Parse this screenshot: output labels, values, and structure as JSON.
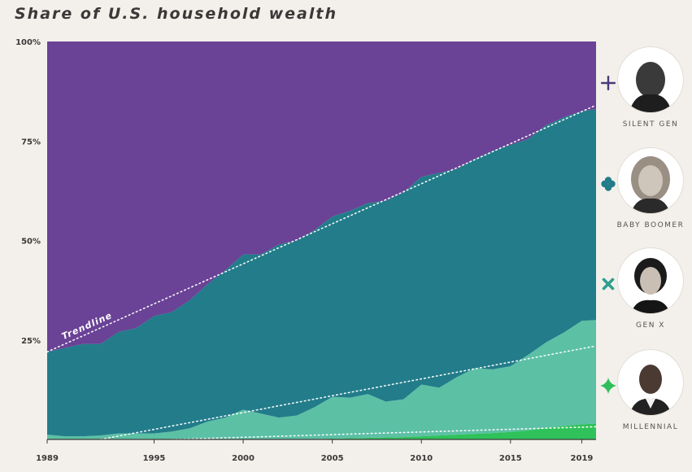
{
  "title": "Share of U.S. household wealth",
  "chart_data": {
    "type": "area",
    "stacked": true,
    "xlim": [
      1989,
      2019.8
    ],
    "ylim": [
      0,
      100
    ],
    "y_ticks": [
      "100%",
      "75%",
      "50%",
      "25%"
    ],
    "y_tick_values": [
      100,
      75,
      50,
      25
    ],
    "x_ticks": [
      "1989",
      "1995",
      "2000",
      "2005",
      "2010",
      "2015",
      "2019"
    ],
    "x_tick_values": [
      1989,
      1995,
      2000,
      2005,
      2010,
      2015,
      2019
    ],
    "x": [
      1989,
      1990,
      1991,
      1992,
      1993,
      1994,
      1995,
      1996,
      1997,
      1998,
      1999,
      2000,
      2001,
      2002,
      2003,
      2004,
      2005,
      2006,
      2007,
      2008,
      2009,
      2010,
      2011,
      2012,
      2013,
      2014,
      2015,
      2016,
      2017,
      2018,
      2019,
      2019.8
    ],
    "series": [
      {
        "name": "Millennial",
        "color": "#2fc25b",
        "values": [
          0,
          0,
          0,
          0,
          0,
          0,
          0,
          0,
          0,
          0,
          0,
          0,
          0,
          0,
          0,
          0.1,
          0.2,
          0.3,
          0.4,
          0.5,
          0.6,
          0.8,
          1.0,
          1.2,
          1.4,
          1.6,
          1.9,
          2.3,
          2.9,
          3.4,
          3.8,
          4.0
        ]
      },
      {
        "name": "Gen X",
        "color": "#5cc0a5",
        "values": [
          1.2,
          0.8,
          0.8,
          1.0,
          1.5,
          1.5,
          1.5,
          2.0,
          2.8,
          4.5,
          5.5,
          7.5,
          6.5,
          5.5,
          6.0,
          8.0,
          10.5,
          10.2,
          11.0,
          9.0,
          9.5,
          13.0,
          12.0,
          14.5,
          16.5,
          16.0,
          16.5,
          19.0,
          21.5,
          23.5,
          26.0,
          26.0
        ]
      },
      {
        "name": "Baby Boomer",
        "color": "#227c8a",
        "values": [
          20.8,
          22.2,
          23.2,
          23.0,
          25.5,
          26.5,
          29.5,
          30.0,
          32.2,
          34.5,
          37.0,
          39.0,
          40.0,
          43.5,
          44.0,
          44.5,
          45.3,
          47.0,
          48.0,
          50.5,
          52.0,
          52.2,
          54.0,
          52.3,
          52.6,
          54.9,
          55.6,
          54.2,
          54.6,
          54.1,
          52.7,
          53.0
        ]
      },
      {
        "name": "Silent Gen",
        "color": "#6a4296",
        "values": [
          78,
          77,
          76,
          76,
          73,
          72,
          69,
          68,
          65,
          61,
          57.5,
          53.5,
          53.5,
          51.0,
          50.0,
          47.4,
          44.0,
          42.5,
          40.6,
          40.0,
          37.9,
          34.0,
          33.0,
          32.0,
          29.5,
          27.5,
          26.0,
          24.5,
          21.0,
          19.0,
          17.5,
          17.0
        ]
      }
    ],
    "trendlines": [
      {
        "name": "Trendline",
        "label": "Trendline",
        "x": [
          1989,
          2019.8
        ],
        "y": [
          22,
          84
        ]
      },
      {
        "x": [
          1992,
          2019.8
        ],
        "y": [
          0,
          23.5
        ]
      },
      {
        "x": [
          1996,
          2019.8
        ],
        "y": [
          0,
          3.2
        ]
      }
    ]
  },
  "legend": [
    {
      "label": "SILENT GEN",
      "icon": "plus-glyph-icon",
      "color": "#4a3a7c"
    },
    {
      "label": "BABY BOOMER",
      "icon": "club-glyph-icon",
      "color": "#227c8a"
    },
    {
      "label": "GEN X",
      "icon": "x-glyph-icon",
      "color": "#2f9e8f"
    },
    {
      "label": "MILLENNIAL",
      "icon": "four-point-star-icon",
      "color": "#2fbf5a"
    }
  ]
}
